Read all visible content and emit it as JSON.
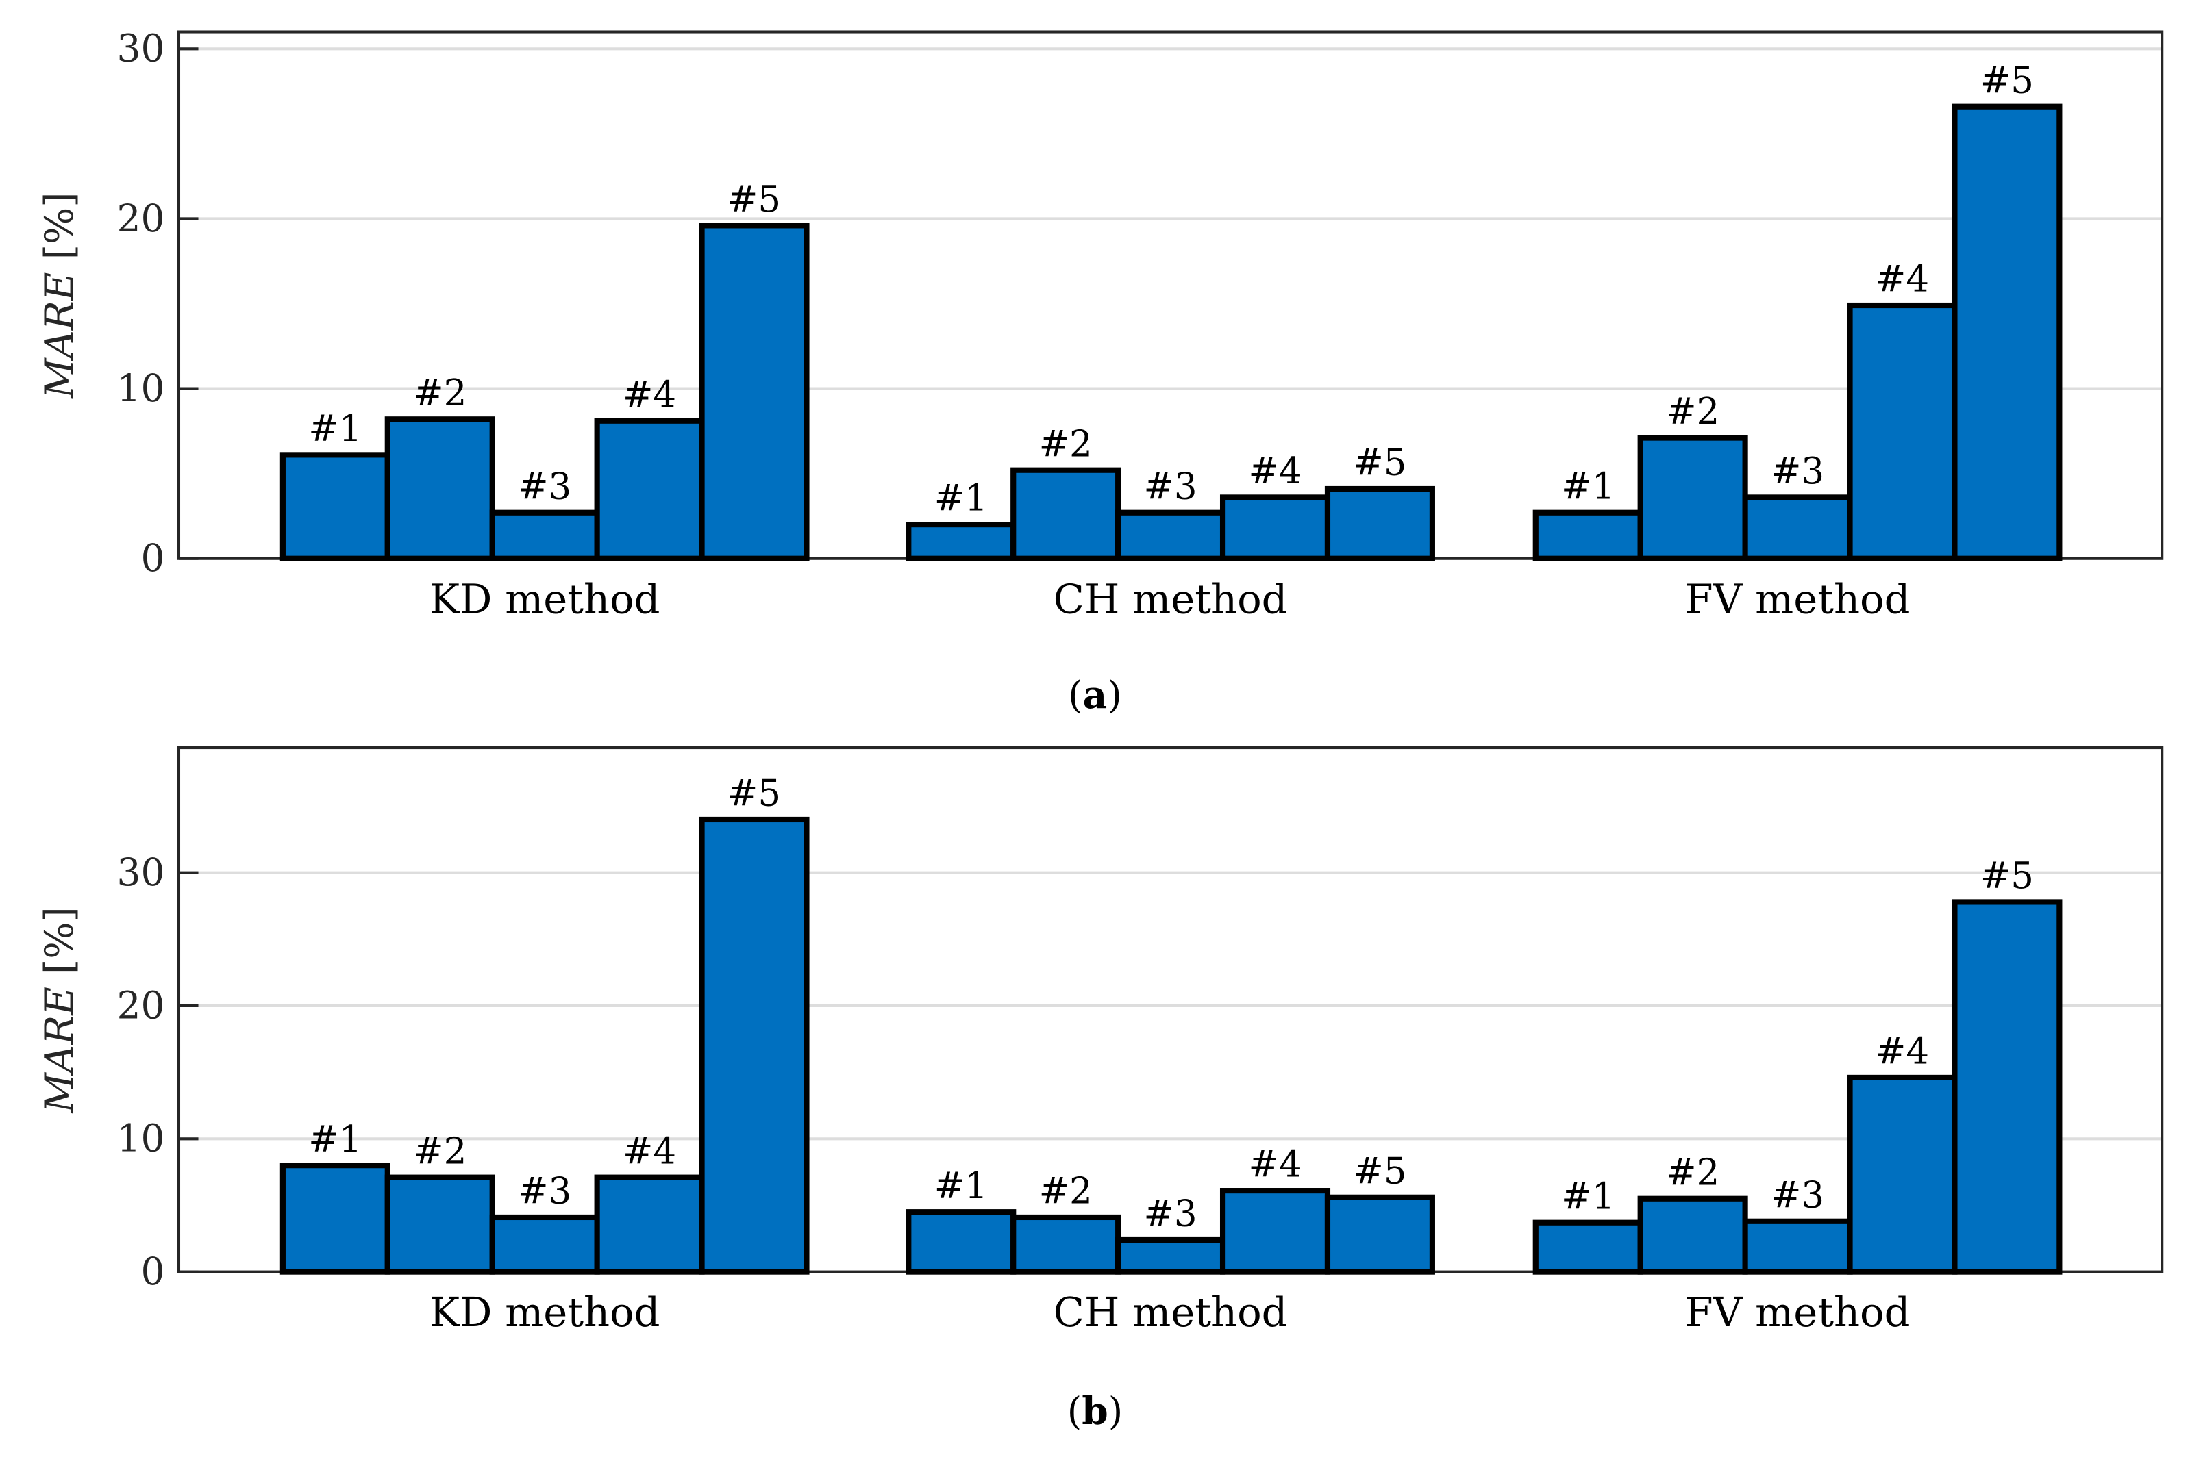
{
  "bar_color": "#0070C0",
  "grid_color": "#DDDDDD",
  "chart_data": [
    {
      "type": "bar",
      "caption": "(a)",
      "caption_letter": "a",
      "ylabel_italic": "MARE",
      "ylabel_unit": "[%]",
      "xlabel": "",
      "ylim": [
        0,
        31
      ],
      "yticks": [
        0,
        10,
        20,
        30
      ],
      "grid": true,
      "categories": [
        "KD method",
        "CH method",
        "FV method"
      ],
      "bar_labels": [
        "#1",
        "#2",
        "#3",
        "#4",
        "#5"
      ],
      "values": [
        [
          6.1,
          8.2,
          2.7,
          8.1,
          19.6
        ],
        [
          2.0,
          5.2,
          2.7,
          3.6,
          4.1
        ],
        [
          2.7,
          7.1,
          3.6,
          14.9,
          26.6
        ]
      ]
    },
    {
      "type": "bar",
      "caption": "(b)",
      "caption_letter": "b",
      "ylabel_italic": "MARE",
      "ylabel_unit": "[%]",
      "xlabel": "",
      "ylim": [
        0,
        39.4
      ],
      "yticks": [
        0,
        10,
        20,
        30
      ],
      "grid": true,
      "categories": [
        "KD method",
        "CH method",
        "FV method"
      ],
      "bar_labels": [
        "#1",
        "#2",
        "#3",
        "#4",
        "#5"
      ],
      "values": [
        [
          8.0,
          7.1,
          4.1,
          7.1,
          34.0
        ],
        [
          4.5,
          4.1,
          2.4,
          6.1,
          5.6
        ],
        [
          3.7,
          5.5,
          3.8,
          14.6,
          27.8
        ]
      ]
    }
  ]
}
